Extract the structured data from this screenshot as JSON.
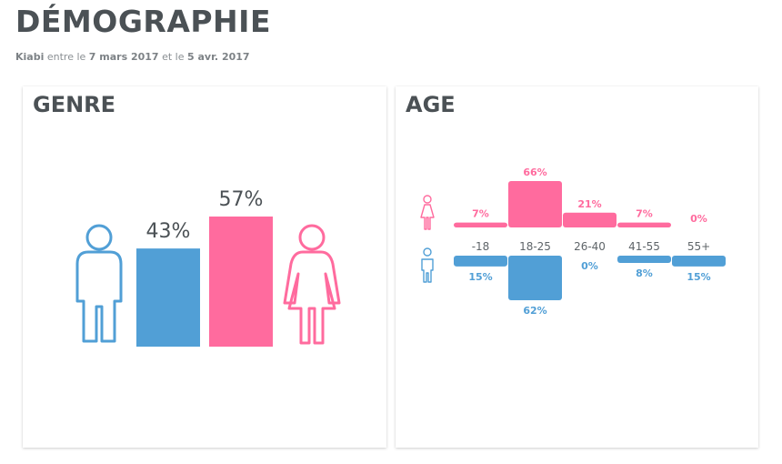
{
  "header": {
    "title": "DÉMOGRAPHIE",
    "brand": "Kiabi",
    "between": "entre le",
    "date_start": "7 mars 2017",
    "and": "et le",
    "date_end": "5 avr. 2017"
  },
  "colors": {
    "male": "#519fd6",
    "female": "#ff6b9e",
    "text": "#4b5155"
  },
  "icons": {
    "male": "man-outline-icon",
    "female": "woman-outline-icon"
  },
  "chart_data": [
    {
      "type": "bar",
      "title": "GENRE",
      "categories": [
        "Hommes",
        "Femmes"
      ],
      "values": [
        43,
        57
      ],
      "labels": [
        "43%",
        "57%"
      ],
      "ylim": [
        0,
        57
      ]
    },
    {
      "type": "bar",
      "title": "AGE",
      "categories": [
        "-18",
        "18-25",
        "26-40",
        "41-55",
        "55+"
      ],
      "series": [
        {
          "values": [
            7,
            66,
            21,
            7,
            0
          ],
          "labels": [
            "7%",
            "66%",
            "21%",
            "7%",
            "0%"
          ]
        },
        {
          "values": [
            15,
            62,
            0,
            8,
            15
          ],
          "labels": [
            "15%",
            "62%",
            "0%",
            "8%",
            "15%"
          ]
        }
      ],
      "ylim": [
        0,
        66
      ]
    }
  ]
}
